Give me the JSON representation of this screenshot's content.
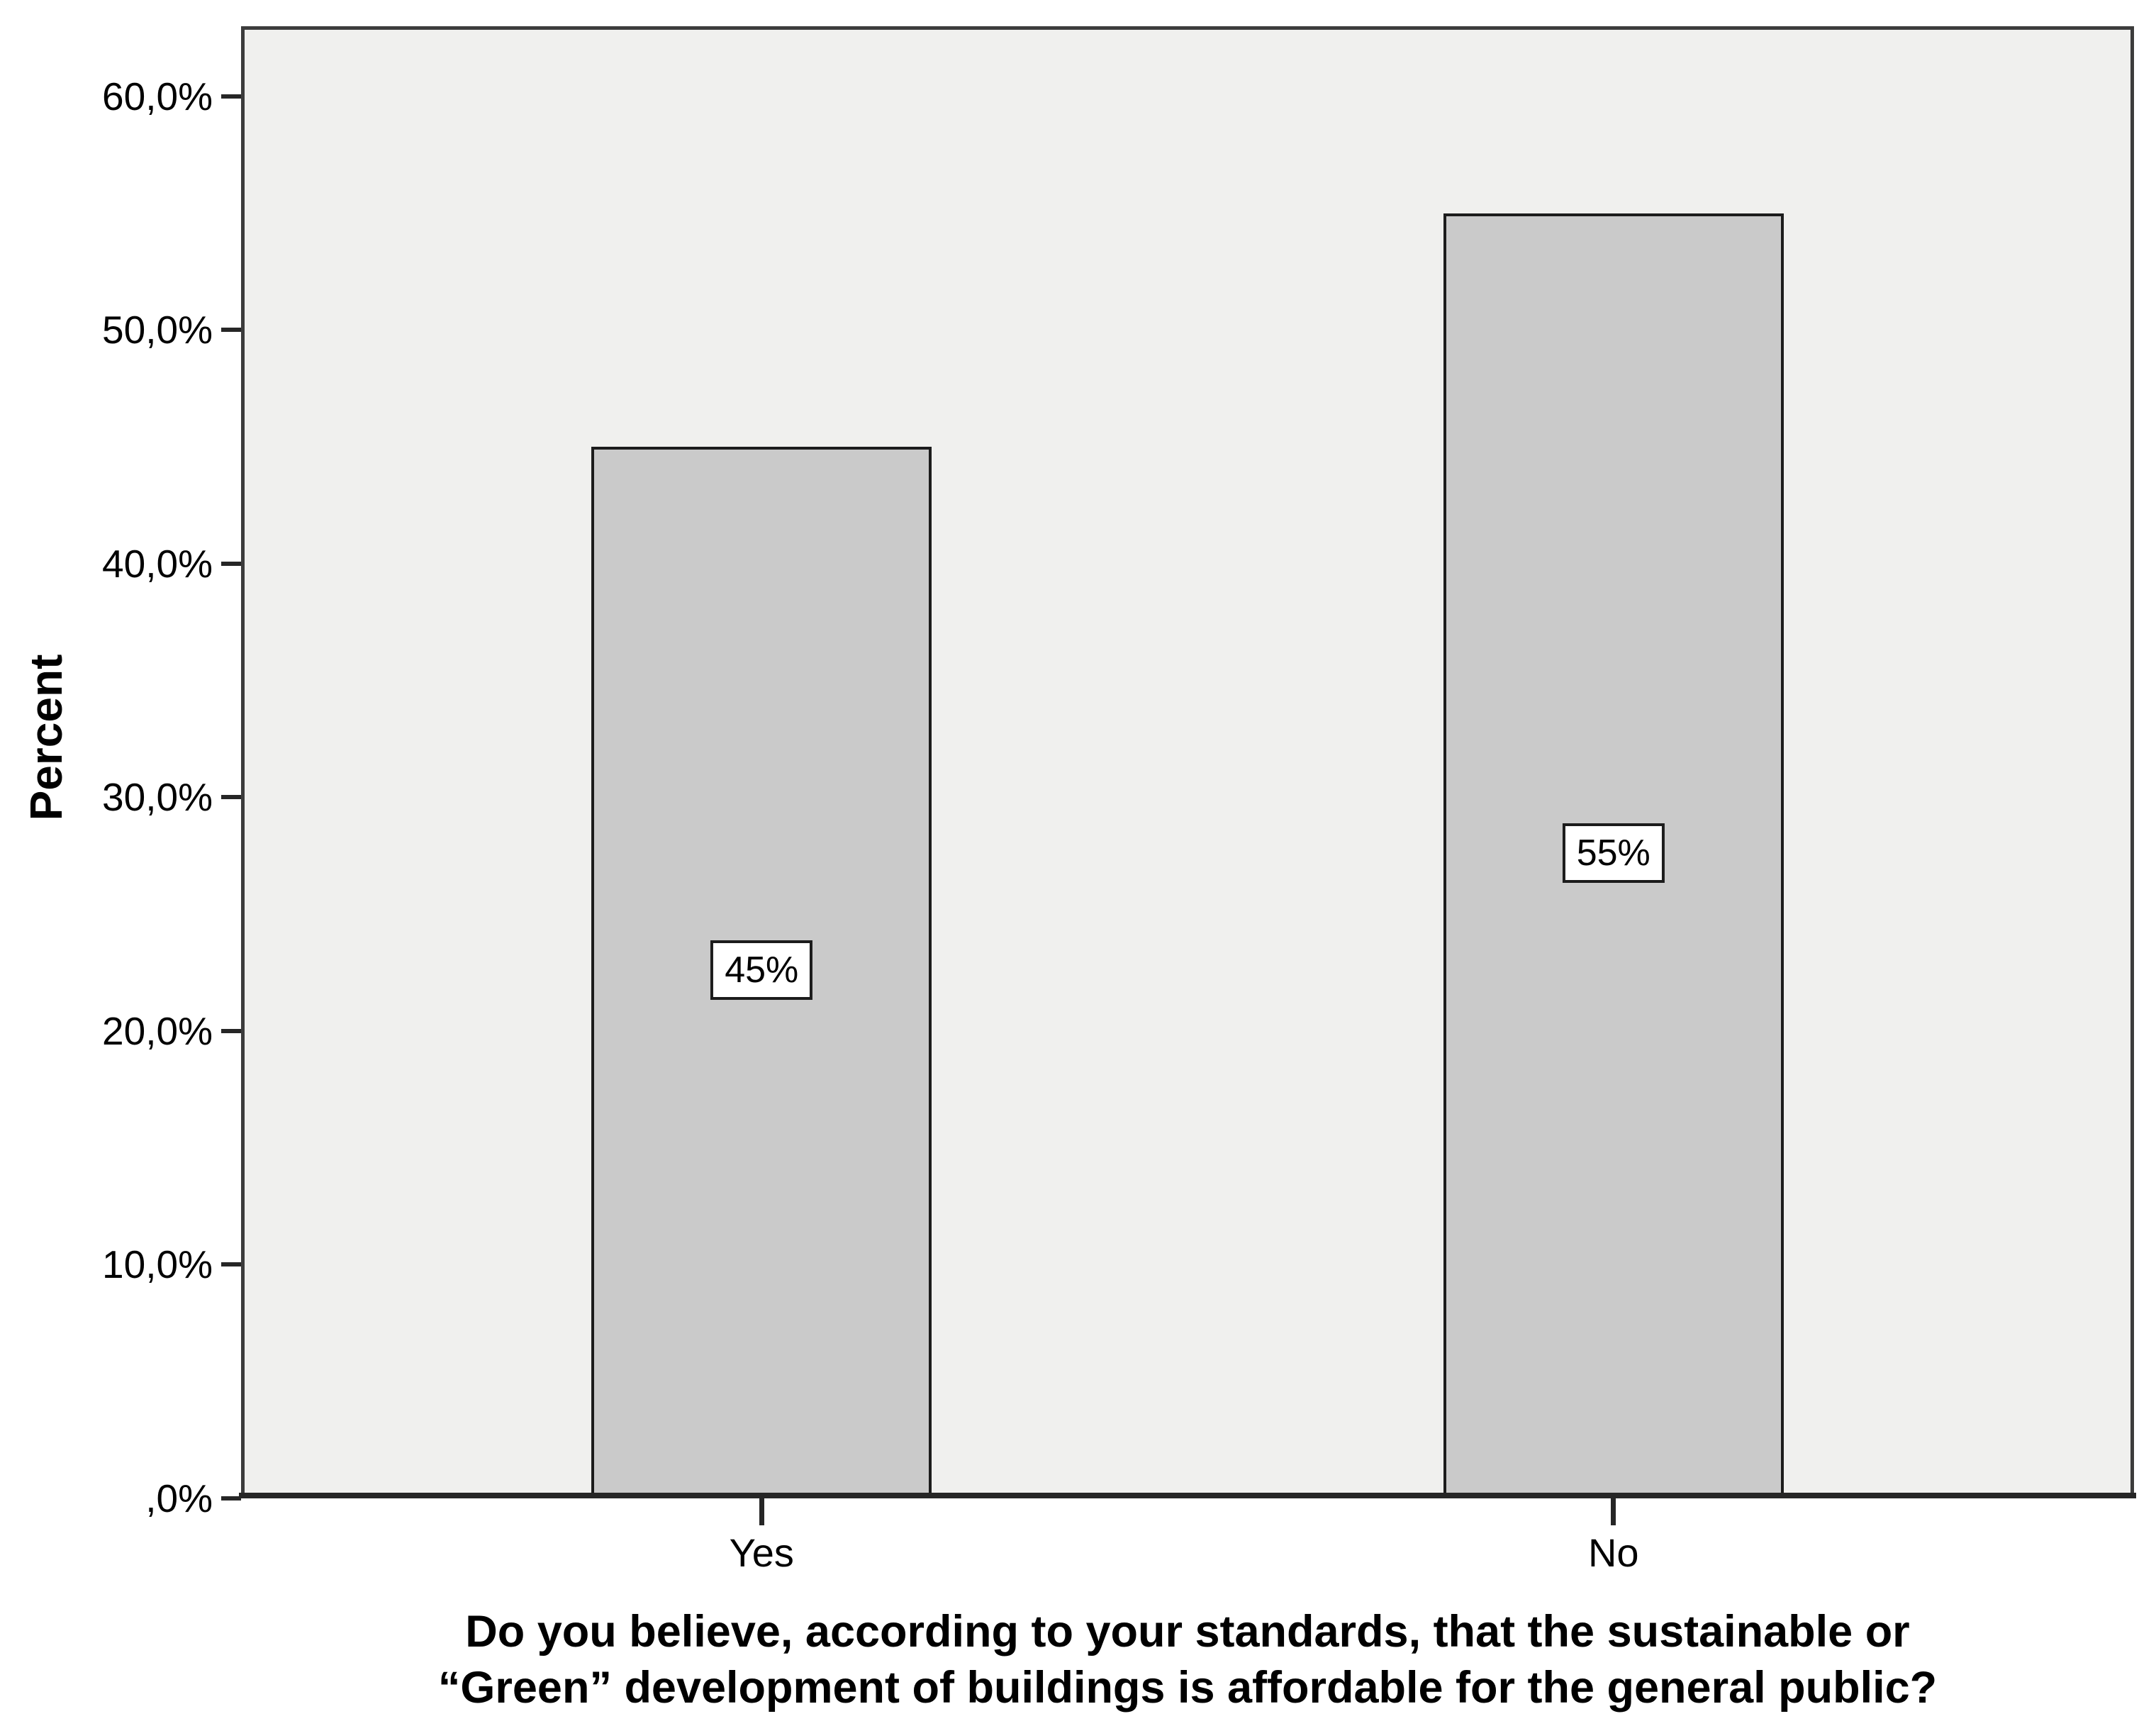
{
  "chart_data": {
    "type": "bar",
    "categories": [
      "Yes",
      "No"
    ],
    "values": [
      45,
      55
    ],
    "bar_value_labels": [
      "45%",
      "55%"
    ],
    "ylabel": "Percent",
    "xlabel": "Do you believe, according to your standards, that the sustainable or “Green” development of buildings is affordable for the general public?",
    "xlabel_lines": [
      "Do you believe, according to your standards, that the sustainable or",
      "“Green” development of buildings is affordable for the general public?"
    ],
    "ylim": [
      0,
      63
    ],
    "ytick_values": [
      60,
      50,
      40,
      30,
      20,
      10,
      0
    ],
    "ytick_labels": [
      "60,0%",
      "50,0%",
      "40,0%",
      "30,0%",
      "20,0%",
      "10,0%",
      ",0%"
    ],
    "grid": false,
    "legend_position": "none",
    "colors": {
      "figure_background": "#ffffff",
      "plot_background": "#f0f0ee",
      "bar_fill": "#cacaca",
      "bar_border": "#1c1c1c",
      "frame_border": "#3c3c3c",
      "axis_line": "#262626",
      "value_label_background": "#ffffff",
      "text": "#000000"
    }
  }
}
